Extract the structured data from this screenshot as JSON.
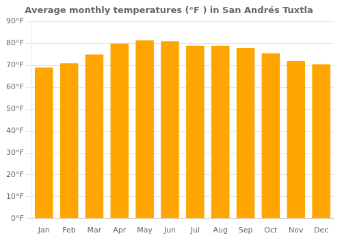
{
  "chart_data": {
    "type": "bar",
    "title": "Average monthly temperatures (°F ) in San Andrés Tuxtla",
    "categories": [
      "Jan",
      "Feb",
      "Mar",
      "Apr",
      "May",
      "Jun",
      "Jul",
      "Aug",
      "Sep",
      "Oct",
      "Nov",
      "Dec"
    ],
    "values": [
      69,
      71,
      75,
      80,
      81.5,
      81,
      79,
      79,
      78,
      75.5,
      72,
      70.5
    ],
    "color": "#FFA500",
    "ylim": [
      0,
      90
    ],
    "yticks": [
      {
        "value": 0,
        "label": "0°F"
      },
      {
        "value": 10,
        "label": "10°F"
      },
      {
        "value": 20,
        "label": "20°F"
      },
      {
        "value": 30,
        "label": "30°F"
      },
      {
        "value": 40,
        "label": "40°F"
      },
      {
        "value": 50,
        "label": "50°F"
      },
      {
        "value": 60,
        "label": "60°F"
      },
      {
        "value": 70,
        "label": "70°F"
      },
      {
        "value": 80,
        "label": "80°F"
      },
      {
        "value": 90,
        "label": "90°F"
      }
    ],
    "grid": "y"
  }
}
